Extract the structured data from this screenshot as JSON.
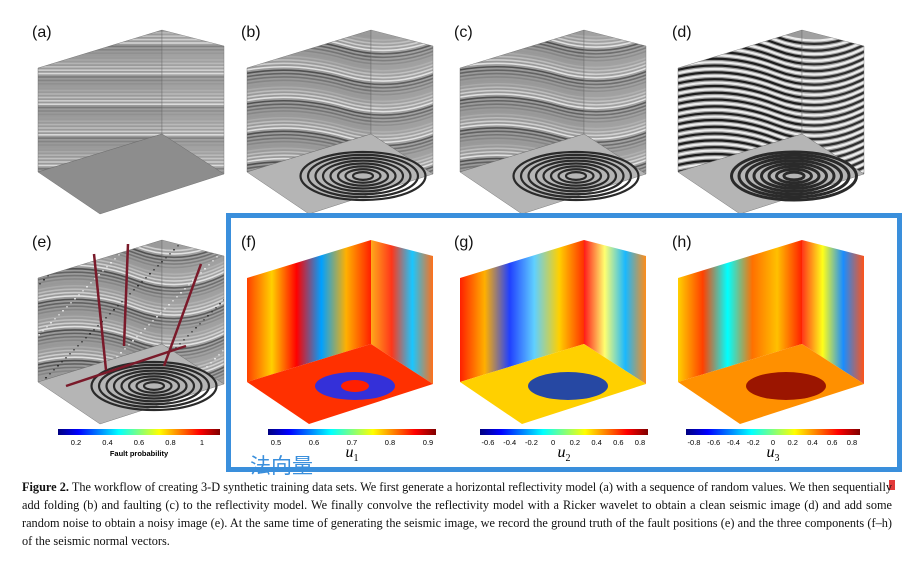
{
  "panels": [
    {
      "label": "(a)",
      "style": "flat"
    },
    {
      "label": "(b)",
      "style": "folded"
    },
    {
      "label": "(c)",
      "style": "faulted"
    },
    {
      "label": "(d)",
      "style": "clean"
    },
    {
      "label": "(e)",
      "style": "noisy"
    },
    {
      "label": "(f)",
      "style": "u1"
    },
    {
      "label": "(g)",
      "style": "u2"
    },
    {
      "label": "(h)",
      "style": "u3"
    }
  ],
  "colorbars": [
    {
      "id": "fault",
      "ticks": [
        "0.2",
        "0.4",
        "0.6",
        "0.8",
        "1"
      ],
      "title": "Fault probability",
      "component": "",
      "colormap": "jet"
    },
    {
      "id": "u1",
      "ticks": [
        "0.5",
        "0.6",
        "0.7",
        "0.8",
        "0.9"
      ],
      "title": "",
      "component": "u",
      "subscript": "1",
      "colormap": "jet"
    },
    {
      "id": "u2",
      "ticks": [
        "-0.6",
        "-0.4",
        "-0.2",
        "0",
        "0.2",
        "0.4",
        "0.6",
        "0.8"
      ],
      "title": "",
      "component": "u",
      "subscript": "2",
      "colormap": "jet"
    },
    {
      "id": "u3",
      "ticks": [
        "-0.8",
        "-0.6",
        "-0.4",
        "-0.2",
        "0",
        "0.2",
        "0.4",
        "0.6",
        "0.8"
      ],
      "title": "",
      "component": "u",
      "subscript": "3",
      "colormap": "jet"
    }
  ],
  "annotation": "法向量",
  "caption": {
    "figure_label": "Figure 2.",
    "text": "The workflow of creating 3-D synthetic training data sets. We first generate a horizontal reflectivity model (a) with a sequence of random values. We then sequentially add folding (b) and faulting (c) to the reflectivity model. We finally convolve the reflectivity model with a Ricker wavelet to obtain a clean seismic image (d) and add some random noise to obtain a noisy image (e). At the same time of generating the seismic image, we record the ground truth of the fault positions (e) and the three components (f–h) of the seismic normal vectors."
  },
  "colors": {
    "highlight": "#3a8fdc",
    "fault_line": "#7a1a2a"
  }
}
